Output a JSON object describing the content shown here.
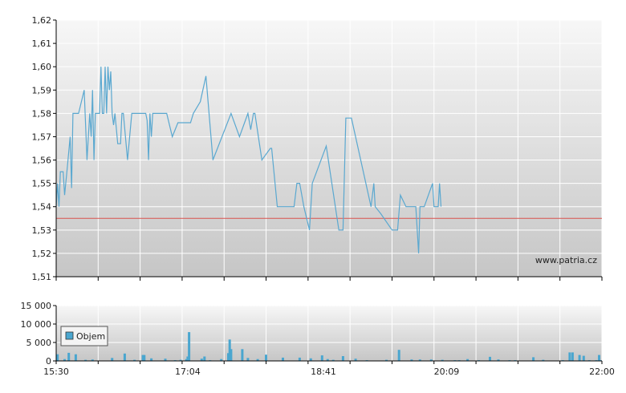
{
  "chart_data": [
    {
      "type": "line",
      "title": "",
      "xlabel": "",
      "ylabel": "",
      "ylim": [
        1.51,
        1.62
      ],
      "yticks": [
        "1,51",
        "1,52",
        "1,53",
        "1,54",
        "1,55",
        "1,56",
        "1,57",
        "1,58",
        "1,59",
        "1,60",
        "1,61",
        "1,62"
      ],
      "xticks": [
        "15:30",
        "17:04",
        "18:41",
        "20:09",
        "22:00"
      ],
      "reference_line": {
        "value": 1.535,
        "color": "#d9534f"
      },
      "watermark": "www.patria.cz",
      "line_color": "#5aa8d0",
      "grid": true,
      "series": [
        {
          "name": "",
          "points": [
            [
              "15:30",
              1.54
            ],
            [
              "15:31",
              1.55
            ],
            [
              "15:32",
              1.54
            ],
            [
              "15:33",
              1.555
            ],
            [
              "15:35",
              1.555
            ],
            [
              "15:36",
              1.545
            ],
            [
              "15:38",
              1.557
            ],
            [
              "15:40",
              1.57
            ],
            [
              "15:41",
              1.548
            ],
            [
              "15:42",
              1.58
            ],
            [
              "15:46",
              1.58
            ],
            [
              "15:50",
              1.59
            ],
            [
              "15:52",
              1.56
            ],
            [
              "15:54",
              1.58
            ],
            [
              "15:55",
              1.57
            ],
            [
              "15:56",
              1.59
            ],
            [
              "15:57",
              1.56
            ],
            [
              "15:58",
              1.58
            ],
            [
              "16:01",
              1.58
            ],
            [
              "16:02",
              1.6
            ],
            [
              "16:03",
              1.58
            ],
            [
              "16:04",
              1.58
            ],
            [
              "16:05",
              1.6
            ],
            [
              "16:06",
              1.58
            ],
            [
              "16:07",
              1.6
            ],
            [
              "16:08",
              1.59
            ],
            [
              "16:09",
              1.598
            ],
            [
              "16:10",
              1.58
            ],
            [
              "16:11",
              1.575
            ],
            [
              "16:12",
              1.58
            ],
            [
              "16:14",
              1.567
            ],
            [
              "16:16",
              1.567
            ],
            [
              "16:17",
              1.58
            ],
            [
              "16:18",
              1.58
            ],
            [
              "16:21",
              1.56
            ],
            [
              "16:24",
              1.58
            ],
            [
              "16:32",
              1.58
            ],
            [
              "16:34",
              1.58
            ],
            [
              "16:35",
              1.577
            ],
            [
              "16:36",
              1.56
            ],
            [
              "16:37",
              1.58
            ],
            [
              "16:38",
              1.57
            ],
            [
              "16:39",
              1.58
            ],
            [
              "16:46",
              1.58
            ],
            [
              "16:49",
              1.58
            ],
            [
              "16:53",
              1.57
            ],
            [
              "16:57",
              1.576
            ],
            [
              "17:06",
              1.576
            ],
            [
              "17:08",
              1.58
            ],
            [
              "17:13",
              1.585
            ],
            [
              "17:17",
              1.596
            ],
            [
              "17:22",
              1.56
            ],
            [
              "17:35",
              1.58
            ],
            [
              "17:41",
              1.57
            ],
            [
              "17:47",
              1.58
            ],
            [
              "17:49",
              1.573
            ],
            [
              "17:51",
              1.58
            ],
            [
              "17:52",
              1.58
            ],
            [
              "17:57",
              1.56
            ],
            [
              "18:03",
              1.565
            ],
            [
              "18:04",
              1.565
            ],
            [
              "18:08",
              1.54
            ],
            [
              "18:20",
              1.54
            ],
            [
              "18:22",
              1.55
            ],
            [
              "18:24",
              1.55
            ],
            [
              "18:27",
              1.54
            ],
            [
              "18:31",
              1.53
            ],
            [
              "18:33",
              1.55
            ],
            [
              "18:43",
              1.566
            ],
            [
              "18:52",
              1.53
            ],
            [
              "18:55",
              1.53
            ],
            [
              "18:57",
              1.578
            ],
            [
              "19:01",
              1.578
            ],
            [
              "19:15",
              1.54
            ],
            [
              "19:17",
              1.55
            ],
            [
              "19:18",
              1.54
            ],
            [
              "19:22",
              1.537
            ],
            [
              "19:30",
              1.53
            ],
            [
              "19:34",
              1.53
            ],
            [
              "19:36",
              1.545
            ],
            [
              "19:40",
              1.54
            ],
            [
              "19:47",
              1.54
            ],
            [
              "19:49",
              1.52
            ],
            [
              "19:50",
              1.54
            ],
            [
              "19:53",
              1.54
            ],
            [
              "19:59",
              1.55
            ],
            [
              "20:00",
              1.54
            ],
            [
              "20:03",
              1.54
            ],
            [
              "20:04",
              1.55
            ],
            [
              "20:05",
              1.54
            ]
          ]
        }
      ]
    },
    {
      "type": "bar",
      "title": "",
      "xlabel": "",
      "ylabel": "",
      "ylim": [
        0,
        15000
      ],
      "yticks": [
        "0",
        "5 000",
        "10 000",
        "15 000"
      ],
      "xticks": [
        "15:30",
        "17:04",
        "18:41",
        "20:09",
        "22:00"
      ],
      "bar_color": "#4aa6cf",
      "legend": {
        "label": "Objem",
        "placement": "top-left"
      },
      "grid": true,
      "series": [
        {
          "name": "Objem",
          "points": [
            [
              "15:31",
              1800
            ],
            [
              "15:36",
              500
            ],
            [
              "15:39",
              2200
            ],
            [
              "15:44",
              1800
            ],
            [
              "15:51",
              300
            ],
            [
              "15:56",
              400
            ],
            [
              "16:10",
              800
            ],
            [
              "16:19",
              2000
            ],
            [
              "16:26",
              300
            ],
            [
              "16:32",
              1600
            ],
            [
              "16:33",
              1600
            ],
            [
              "16:38",
              700
            ],
            [
              "16:48",
              600
            ],
            [
              "16:55",
              200
            ],
            [
              "16:59",
              300
            ],
            [
              "17:03",
              500
            ],
            [
              "17:04",
              1200
            ],
            [
              "17:05",
              7800
            ],
            [
              "17:14",
              600
            ],
            [
              "17:16",
              1200
            ],
            [
              "17:20",
              200
            ],
            [
              "17:28",
              500
            ],
            [
              "17:33",
              2100
            ],
            [
              "17:34",
              5800
            ],
            [
              "17:35",
              3200
            ],
            [
              "17:43",
              3200
            ],
            [
              "17:47",
              800
            ],
            [
              "17:54",
              500
            ],
            [
              "18:00",
              1700
            ],
            [
              "18:12",
              900
            ],
            [
              "18:24",
              900
            ],
            [
              "18:32",
              700
            ],
            [
              "18:40",
              1500
            ],
            [
              "18:44",
              500
            ],
            [
              "18:48",
              300
            ],
            [
              "18:55",
              1300
            ],
            [
              "19:04",
              600
            ],
            [
              "19:12",
              200
            ],
            [
              "19:26",
              300
            ],
            [
              "19:35",
              3000
            ],
            [
              "19:44",
              400
            ],
            [
              "19:50",
              400
            ],
            [
              "19:58",
              400
            ],
            [
              "20:06",
              300
            ],
            [
              "20:15",
              200
            ],
            [
              "20:18",
              200
            ],
            [
              "20:24",
              500
            ],
            [
              "20:32",
              200
            ],
            [
              "20:40",
              1100
            ],
            [
              "20:46",
              400
            ],
            [
              "20:54",
              200
            ],
            [
              "20:58",
              200
            ],
            [
              "21:11",
              1000
            ],
            [
              "21:18",
              300
            ],
            [
              "21:32",
              200
            ],
            [
              "21:37",
              2300
            ],
            [
              "21:39",
              2300
            ],
            [
              "21:44",
              1600
            ],
            [
              "21:47",
              1400
            ],
            [
              "21:51",
              200
            ],
            [
              "21:56",
              200
            ],
            [
              "21:58",
              1600
            ],
            [
              "21:59",
              200
            ]
          ]
        }
      ]
    }
  ]
}
